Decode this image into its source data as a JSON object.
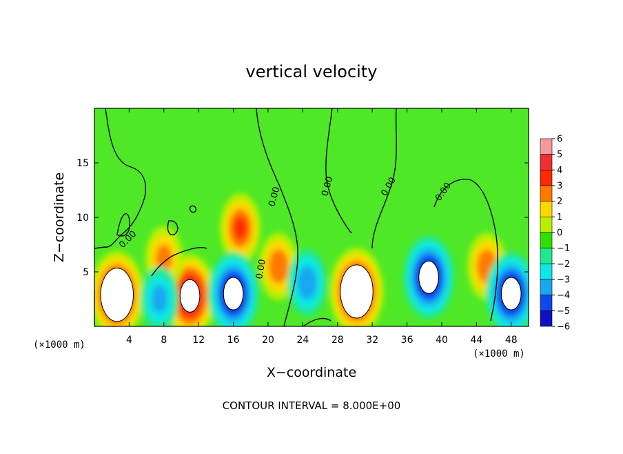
{
  "chart_data": {
    "type": "heatmap",
    "title": "vertical velocity",
    "xlabel": "X−coordinate",
    "ylabel": "Z−coordinate",
    "x_unit_left": "(×1000 m)",
    "x_unit_right": "(×1000 m)",
    "xlim": [
      0,
      50
    ],
    "ylim": [
      0,
      20
    ],
    "x_ticks": [
      4,
      8,
      12,
      16,
      20,
      24,
      28,
      32,
      36,
      40,
      44,
      48
    ],
    "y_ticks": [
      5,
      10,
      15
    ],
    "colorbar": {
      "levels": [
        6,
        5,
        4,
        3,
        2,
        1,
        0,
        -1,
        -2,
        -3,
        -4,
        -5,
        -6
      ],
      "labels": [
        "6",
        "5",
        "4",
        "3",
        "2",
        "1",
        "0",
        "−1",
        "−2",
        "−3",
        "−4",
        "−5",
        "−6"
      ],
      "colors": [
        "#f49a9a",
        "#f03030",
        "#ff2a00",
        "#ff7a00",
        "#ffd800",
        "#b8f000",
        "#30e000",
        "#22e890",
        "#10e8e8",
        "#18a8f0",
        "#1048f0",
        "#1010c0",
        "#8a10b0"
      ]
    },
    "contour_label": "0.00",
    "features": [
      {
        "kind": "updraft",
        "x": 2.6,
        "z": 2.9,
        "max": 8
      },
      {
        "kind": "updraft",
        "x": 11.0,
        "z": 2.8,
        "max": 7
      },
      {
        "kind": "updraft",
        "x": 30.2,
        "z": 3.2,
        "max": 8
      },
      {
        "kind": "updraft",
        "x": 16.8,
        "z": 9.0,
        "max": 4
      },
      {
        "kind": "updraft",
        "x": 21.2,
        "z": 5.5,
        "max": 3.5
      },
      {
        "kind": "updraft",
        "x": 45.2,
        "z": 5.5,
        "max": 3.5
      },
      {
        "kind": "updraft",
        "x": 8.0,
        "z": 6.2,
        "max": 3
      },
      {
        "kind": "downdraft",
        "x": 16.0,
        "z": 3.0,
        "min": -7
      },
      {
        "kind": "downdraft",
        "x": 38.5,
        "z": 4.5,
        "min": -7
      },
      {
        "kind": "downdraft",
        "x": 48.0,
        "z": 3.0,
        "min": -7
      },
      {
        "kind": "downdraft",
        "x": 24.5,
        "z": 4.0,
        "min": -3.5
      },
      {
        "kind": "downdraft",
        "x": 7.5,
        "z": 2.5,
        "min": -3
      }
    ]
  },
  "footer": {
    "contour_interval": "CONTOUR INTERVAL = 8.000E+00"
  }
}
